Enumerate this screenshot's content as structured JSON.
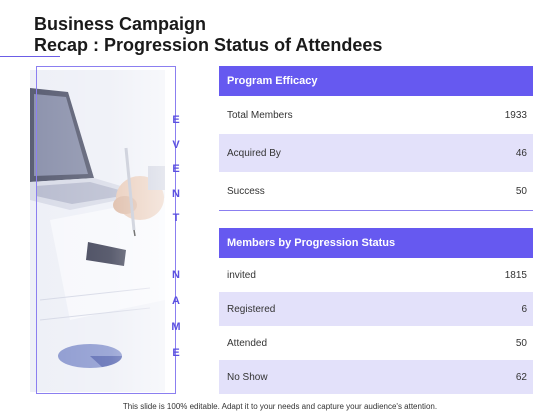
{
  "slide": {
    "title_line1": "Business Campaign",
    "title_line2": "Recap : Progression Status of Attendees",
    "vertical_label_event": "E\nV\nE\nN\nT",
    "vertical_label_name": "N\nA\nM\nE",
    "footer": "This slide is 100% editable. Adapt it to your needs and capture your audience's attention."
  },
  "program_efficacy": {
    "header": "Program Efficacy",
    "rows": [
      {
        "label": "Total Members",
        "value": "1933"
      },
      {
        "label": "Acquired By",
        "value": "46"
      },
      {
        "label": "Success",
        "value": "50"
      }
    ]
  },
  "progression_status": {
    "header": "Members by Progression Status",
    "rows": [
      {
        "label": "invited",
        "value": "1815"
      },
      {
        "label": "Registered",
        "value": "6"
      },
      {
        "label": "Attended",
        "value": "50"
      },
      {
        "label": "No Show",
        "value": "62"
      }
    ]
  },
  "colors": {
    "accent": "#6659f0",
    "row_shade": "#e3e1fa",
    "label_text": "#5a4fe0"
  },
  "image": {
    "description_icon": "laptop-and-hand-with-pen-photo"
  }
}
